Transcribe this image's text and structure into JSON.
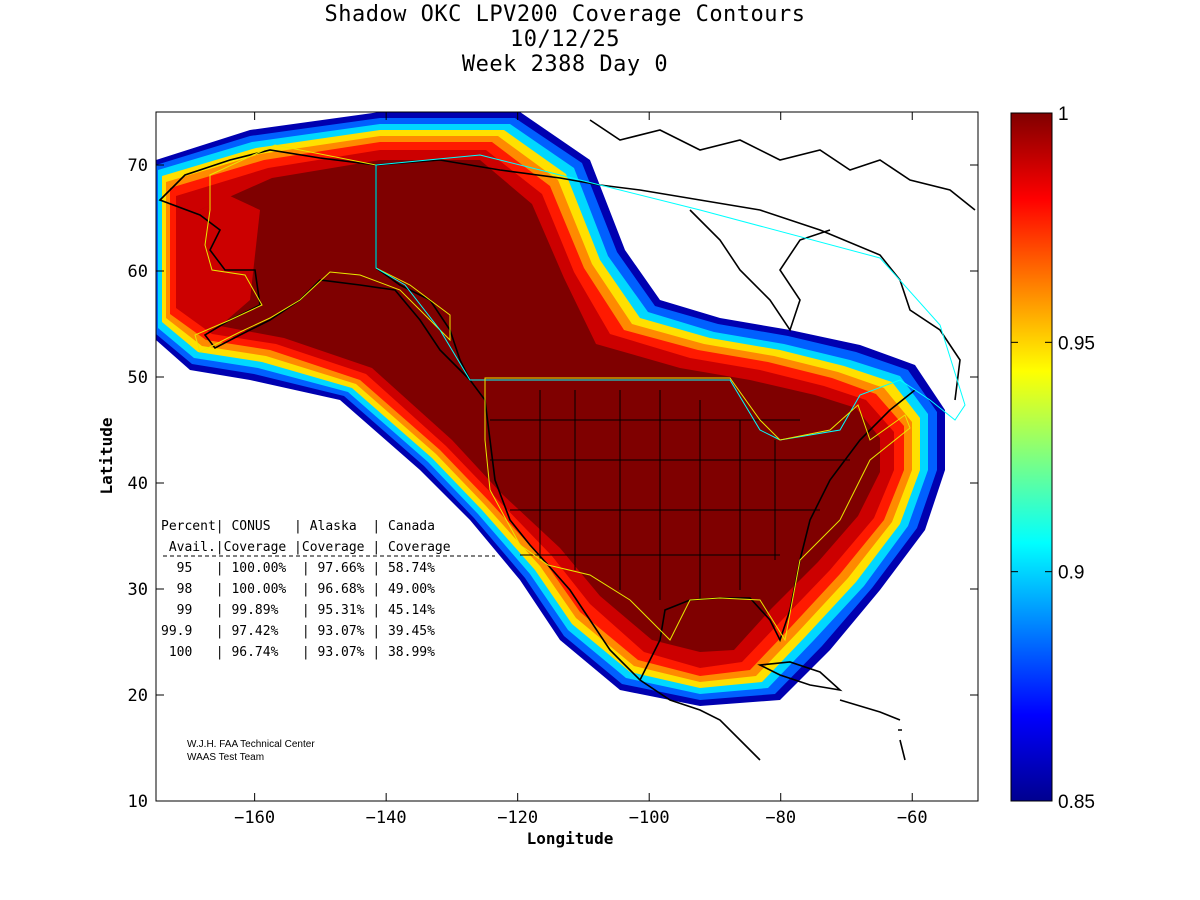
{
  "title": {
    "line1": "Shadow OKC LPV200 Coverage Contours",
    "line2": "10/12/25",
    "line3": "Week 2388 Day 0"
  },
  "axes": {
    "xlabel": "Longitude",
    "ylabel": "Latitude",
    "xlim": [
      -175,
      -50
    ],
    "ylim": [
      10,
      75
    ],
    "xticks": [
      -160,
      -140,
      -120,
      -100,
      -80,
      -60
    ],
    "yticks": [
      10,
      20,
      30,
      40,
      50,
      60,
      70
    ]
  },
  "colorbar": {
    "min": 0.85,
    "max": 1,
    "ticks": [
      "1",
      "0.95",
      "0.9",
      "0.85"
    ],
    "tick_values": [
      1,
      0.95,
      0.9,
      0.85
    ]
  },
  "table": {
    "header1": "Percent| CONUS   | Alaska  | Canada",
    "header2": " Avail.|Coverage |Coverage | Coverage",
    "rows": [
      "  95   | 100.00%  | 97.66% | 58.74%",
      "  98   | 100.00%  | 96.68% | 49.00%",
      "  99   | 99.89%   | 95.31% | 45.14%",
      "99.9   | 97.42%   | 93.07% | 39.45%",
      " 100   | 96.74%   | 93.07% | 38.99%"
    ]
  },
  "credit": {
    "line1": "W.J.H. FAA Technical Center",
    "line2": "WAAS Test Team"
  },
  "colors": {
    "dark_red": "#7f0000",
    "red": "#d40000",
    "bright_red": "#ff1a00",
    "orange": "#ff8a00",
    "yellow": "#ffee00",
    "cyan": "#00e0ff",
    "blue": "#0050ff",
    "navy": "#0000b0",
    "region_yellow": "#e8e800",
    "region_cyan": "#00ffff"
  },
  "chart_data": {
    "type": "contour-map",
    "title": "Shadow OKC LPV200 Coverage Contours",
    "xlabel": "Longitude",
    "ylabel": "Latitude",
    "xlim": [
      -175,
      -50
    ],
    "ylim": [
      10,
      75
    ],
    "colorbar_range": [
      0.85,
      1
    ],
    "coverage_table": [
      {
        "availability": "95",
        "conus": "100.00%",
        "alaska": "97.66%",
        "canada": "58.74%"
      },
      {
        "availability": "98",
        "conus": "100.00%",
        "alaska": "96.68%",
        "canada": "49.00%"
      },
      {
        "availability": "99",
        "conus": "99.89%",
        "alaska": "95.31%",
        "canada": "45.14%"
      },
      {
        "availability": "99.9",
        "conus": "97.42%",
        "alaska": "93.07%",
        "canada": "39.45%"
      },
      {
        "availability": "100",
        "conus": "96.74%",
        "alaska": "93.07%",
        "canada": "38.99%"
      }
    ]
  }
}
